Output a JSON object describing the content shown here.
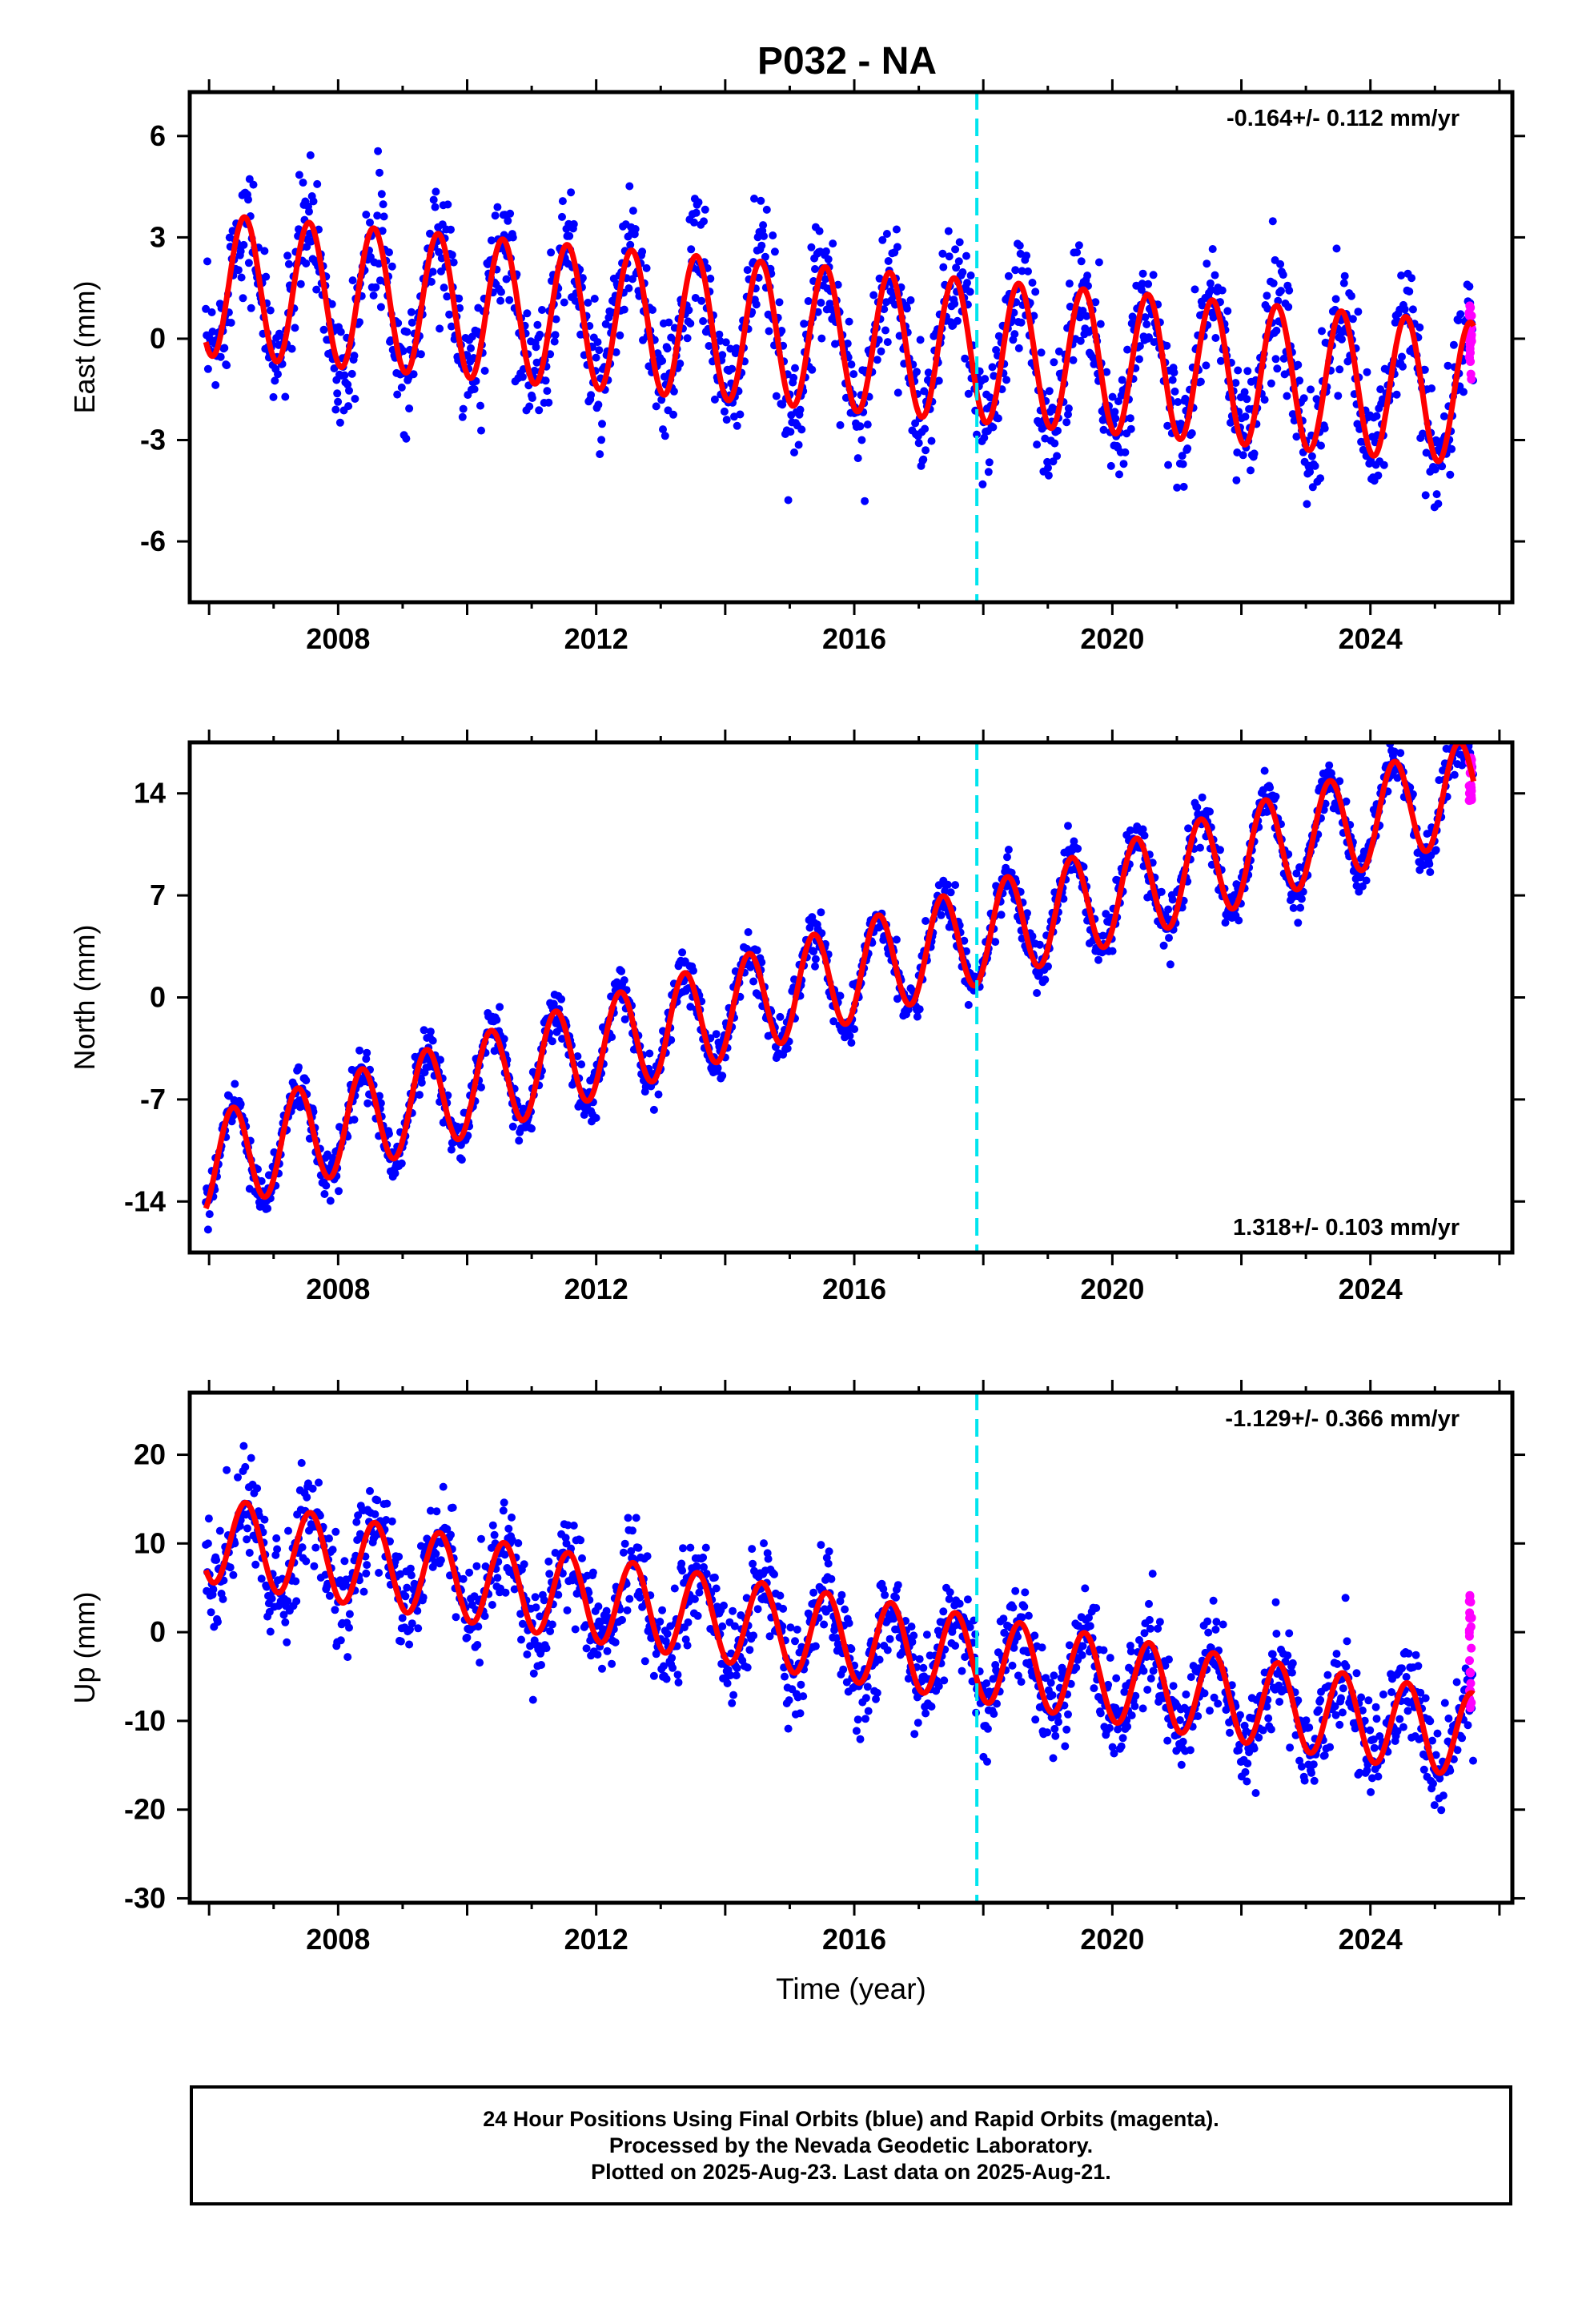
{
  "chart_data": [
    {
      "type": "scatter",
      "title": "P032 - NA",
      "xlabel": "",
      "ylabel": "East (mm)",
      "xlim": [
        2005.7,
        2026.2
      ],
      "ylim": [
        -7.8,
        7.3
      ],
      "x_ticks": [
        2008,
        2012,
        2016,
        2020,
        2024
      ],
      "y_ticks": [
        6,
        3,
        0,
        -3,
        -6
      ],
      "y_tick_labels": [
        "6",
        "3",
        "0",
        "-3",
        "-6"
      ],
      "rate_label": "-0.164+/- 0.112 mm/yr",
      "rate_label_position": "top-right",
      "model": {
        "offset": 1.6,
        "rate": -0.164,
        "amplitude": 2.1,
        "phase_year": 0.6,
        "start": 2005.95,
        "end": 2025.6
      },
      "scatter_noise": 1.2,
      "rapid_points": {
        "x": 2025.55,
        "y_range": [
          -1.2,
          1.1
        ]
      },
      "event_line_x": 2017.9,
      "grid": false
    },
    {
      "type": "scatter",
      "title": "",
      "xlabel": "",
      "ylabel": "North (mm)",
      "xlim": [
        2005.7,
        2026.2
      ],
      "ylim": [
        -17.5,
        17.5
      ],
      "x_ticks": [
        2008,
        2012,
        2016,
        2020,
        2024
      ],
      "y_ticks": [
        14,
        7,
        0,
        -7,
        -14
      ],
      "y_tick_labels": [
        "14",
        "7",
        "0",
        "-7",
        "-14"
      ],
      "rate_label": "1.318+/- 0.103 mm/yr",
      "rate_label_position": "bottom-right",
      "model": {
        "offset": -11.5,
        "rate": 1.318,
        "amplitude": 3.4,
        "phase_year": 0.42,
        "start": 2005.95,
        "end": 2025.6
      },
      "scatter_noise": 1.1,
      "rapid_points": {
        "x": 2025.55,
        "y_range": [
          13.5,
          16.5
        ]
      },
      "event_line_x": 2017.9,
      "grid": false
    },
    {
      "type": "scatter",
      "title": "",
      "xlabel": "Time (year)",
      "ylabel": "Up (mm)",
      "xlim": [
        2005.7,
        2026.2
      ],
      "ylim": [
        -30.5,
        27
      ],
      "x_ticks": [
        2008,
        2012,
        2016,
        2020,
        2024
      ],
      "y_ticks": [
        20,
        10,
        0,
        -10,
        -20,
        -30
      ],
      "y_tick_labels": [
        "20",
        "10",
        "0",
        "-10",
        "-20",
        "-30"
      ],
      "rate_label": "-1.129+/- 0.366 mm/yr",
      "rate_label_position": "top-right",
      "model": {
        "offset": 10.5,
        "rate": -1.129,
        "amplitude": 4.8,
        "phase_year": 0.62,
        "start": 2005.95,
        "end": 2025.6
      },
      "scatter_noise": 3.6,
      "rapid_points": {
        "x": 2025.55,
        "y_range": [
          -9,
          4.5
        ]
      },
      "event_line_x": 2017.9,
      "grid": false
    }
  ],
  "colors": {
    "final_orbits": "#0000ff",
    "rapid_orbits": "#ff00ff",
    "model": "#ff0000",
    "event_line": "#00e5ee"
  },
  "caption": {
    "line1": "24 Hour Positions Using Final Orbits (blue) and Rapid Orbits (magenta).",
    "line2": "Processed by the Nevada Geodetic Laboratory.",
    "line3": "Plotted on 2025-Aug-23. Last data on 2025-Aug-21."
  }
}
